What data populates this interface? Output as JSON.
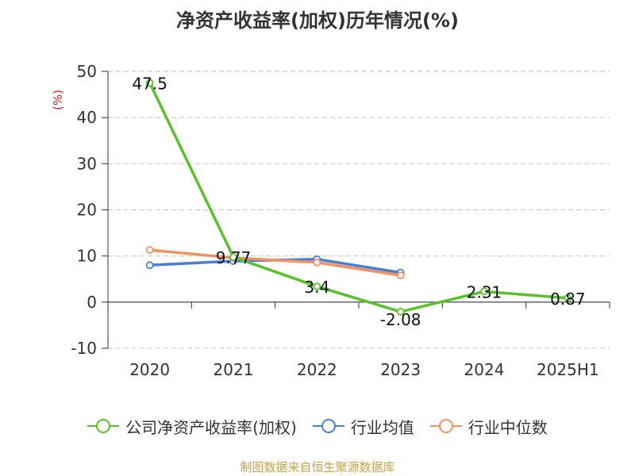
{
  "title": "净资产收益率(加权)历年情况(%)",
  "footer": "制图数据来自恒生聚源数据库",
  "chart_data": {
    "type": "line",
    "categories": [
      "2020",
      "2021",
      "2022",
      "2023",
      "2024",
      "2025H1"
    ],
    "ylabel": "(%)",
    "ylim": [
      -10,
      50
    ],
    "yticks": [
      -10,
      0,
      10,
      20,
      30,
      40,
      50
    ],
    "grid": true,
    "legend_position": "bottom",
    "series": [
      {
        "name": "公司净资产收益率(加权)",
        "color": "#5ac02e",
        "values": [
          47.5,
          9.77,
          3.4,
          -2.08,
          2.31,
          0.87
        ],
        "labels": [
          "47.5",
          "9.77",
          "3.4",
          "-2.08",
          "2.31",
          "0.87"
        ]
      },
      {
        "name": "行业均值",
        "color": "#4a7fd4",
        "values": [
          8.0,
          8.9,
          9.3,
          6.4,
          null,
          null
        ]
      },
      {
        "name": "行业中位数",
        "color": "#f39161",
        "values": [
          11.3,
          9.6,
          8.6,
          5.8,
          null,
          null
        ]
      }
    ]
  }
}
